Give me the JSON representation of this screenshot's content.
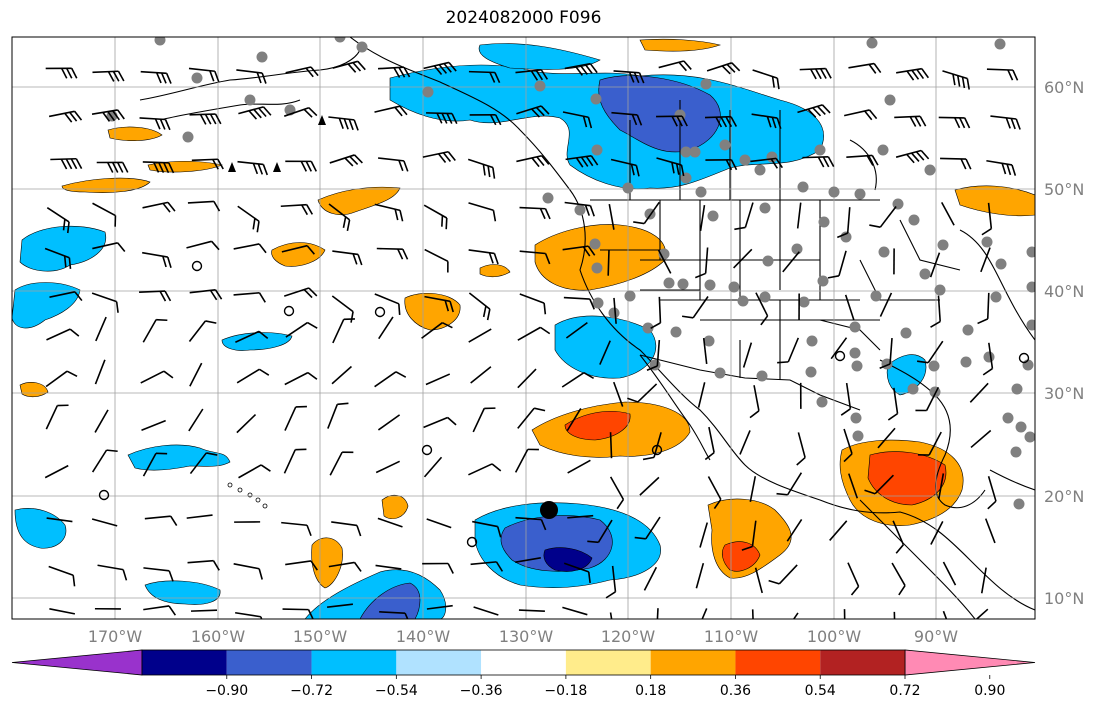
{
  "title": "2024082000 F096",
  "lat_labels": [
    "60°N",
    "50°N",
    "40°N",
    "30°N",
    "20°N",
    "10°N"
  ],
  "lon_labels": [
    "170°W",
    "160°W",
    "150°W",
    "140°W",
    "130°W",
    "120°W",
    "110°W",
    "100°W",
    "90°W"
  ],
  "colorbar": {
    "colors": [
      "#9932CC",
      "#00008B",
      "#3A5FCD",
      "#00BFFF",
      "#B0E2FF",
      "#FFFFFF",
      "#FFEC8B",
      "#FFA500",
      "#FF4500",
      "#B22222",
      "#FF8AB4"
    ],
    "tick_labels": [
      "−0.90",
      "−0.72",
      "−0.54",
      "−0.36",
      "−0.18",
      "0.18",
      "0.36",
      "0.54",
      "0.72",
      "0.90"
    ]
  },
  "colors": {
    "land_border": "#000000",
    "grid": "#a0a0a0",
    "station_dot": "#808080",
    "orange": "#FFA500",
    "red": "#FF4500",
    "light_blue": "#00BFFF",
    "mid_blue": "#3A5FCD",
    "navy": "#00008B"
  }
}
